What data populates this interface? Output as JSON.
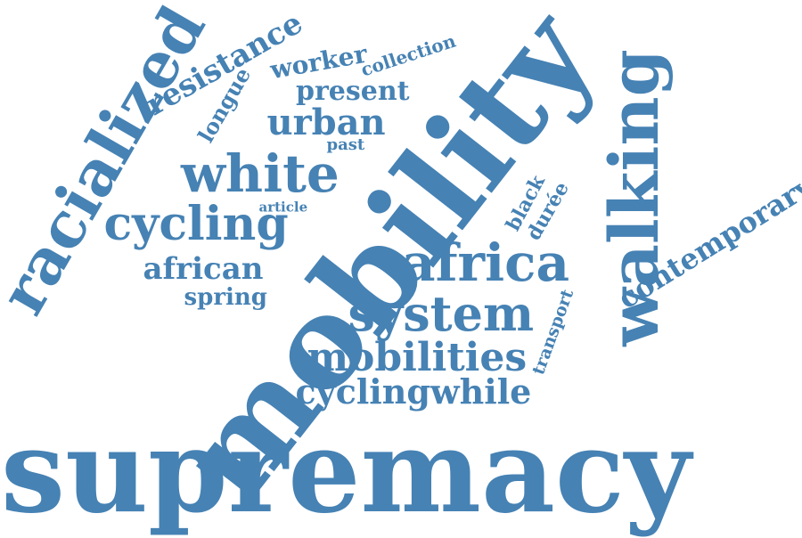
{
  "cloud": {
    "color": "#4682b4",
    "words": [
      {
        "text": "supremacy"
      },
      {
        "text": "mobility"
      },
      {
        "text": "walking"
      },
      {
        "text": "racialized"
      },
      {
        "text": "africa"
      },
      {
        "text": "system"
      },
      {
        "text": "white"
      },
      {
        "text": "cycling"
      },
      {
        "text": "mobilities"
      },
      {
        "text": "cyclingwhile"
      },
      {
        "text": "african"
      },
      {
        "text": "resistance"
      },
      {
        "text": "contemporary"
      },
      {
        "text": "urban"
      },
      {
        "text": "present"
      },
      {
        "text": "worker"
      },
      {
        "text": "longue"
      },
      {
        "text": "spring"
      },
      {
        "text": "black"
      },
      {
        "text": "durée"
      },
      {
        "text": "transport"
      },
      {
        "text": "collection"
      },
      {
        "text": "past"
      },
      {
        "text": "article"
      }
    ]
  }
}
